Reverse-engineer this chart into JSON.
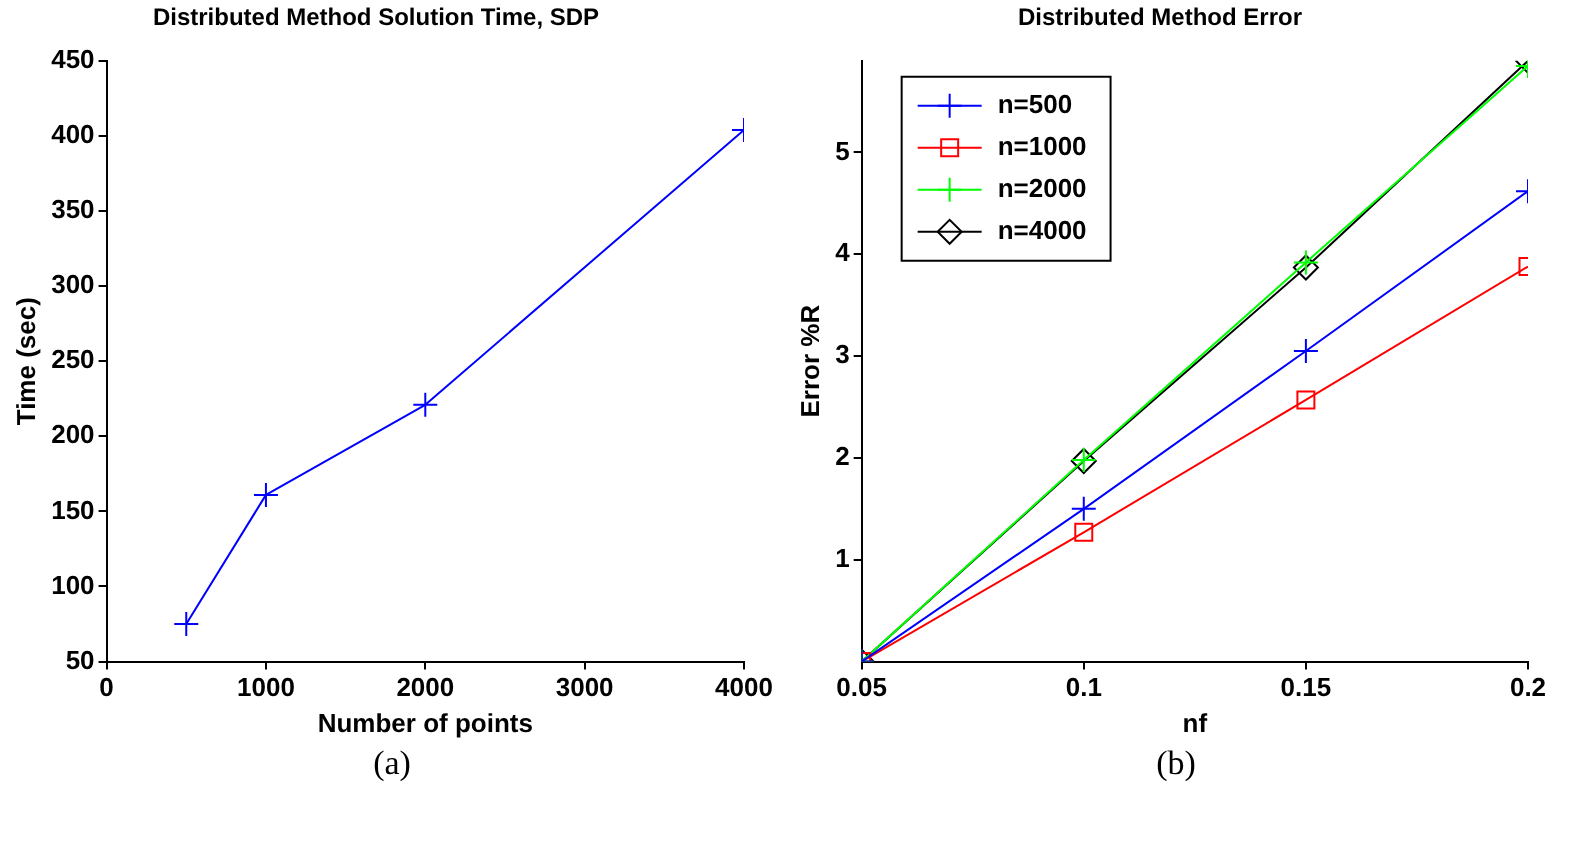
{
  "chart_data": [
    {
      "type": "line",
      "title": "Distributed Method Solution Time, SDP",
      "xlabel": "Number of points",
      "ylabel": "Time (sec)",
      "annotations": [
        "(a)"
      ],
      "x": [
        500,
        1000,
        2000,
        4000
      ],
      "series": [
        {
          "color": "#0000ff",
          "values": [
            75,
            161,
            221,
            404
          ]
        }
      ],
      "xlim": [
        0,
        4000
      ],
      "xticks": [
        0,
        1000,
        2000,
        3000,
        4000
      ],
      "ylim": [
        50,
        450
      ],
      "yticks": [
        50,
        100,
        150,
        200,
        250,
        300,
        350,
        400,
        450
      ],
      "marker": "cross",
      "grid": false,
      "legend": false
    },
    {
      "type": "line",
      "title": "Distributed Method Error",
      "xlabel": "nf",
      "ylabel": "Error %R",
      "annotations": [
        "(b)"
      ],
      "x": [
        0.05,
        0.1,
        0.15,
        0.2
      ],
      "series": [
        {
          "name": "n=500",
          "color": "#0000ff",
          "marker": "cross",
          "values": [
            0,
            1.5,
            3.05,
            4.62
          ]
        },
        {
          "name": "n=1000",
          "color": "#ff0000",
          "marker": "square",
          "values": [
            0,
            1.27,
            2.57,
            3.88
          ]
        },
        {
          "name": "n=2000",
          "color": "#00ff00",
          "marker": "cross",
          "values": [
            0,
            1.98,
            3.92,
            5.85
          ]
        },
        {
          "name": "n=4000",
          "color": "#000000",
          "marker": "diamond",
          "values": [
            0,
            1.97,
            3.87,
            5.9
          ]
        }
      ],
      "xlim": [
        0.05,
        0.2
      ],
      "xticks": [
        0.05,
        0.1,
        0.15,
        0.2
      ],
      "ylim": [
        0,
        5.9
      ],
      "yticks": [
        1,
        2,
        3,
        4,
        5
      ],
      "grid": false,
      "legend": "top left"
    }
  ]
}
